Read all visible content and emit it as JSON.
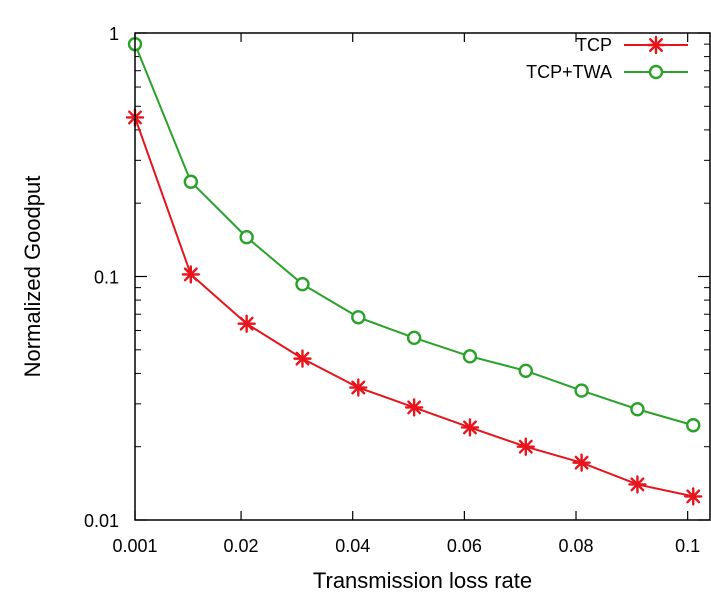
{
  "chart_data": {
    "type": "line",
    "title": "",
    "xlabel": "Transmission loss rate",
    "ylabel": "Normalized Goodput",
    "yscale": "log",
    "ylim": [
      0.01,
      1
    ],
    "xlim": [
      0.001,
      0.104
    ],
    "x": [
      0.001,
      0.011,
      0.021,
      0.031,
      0.041,
      0.051,
      0.061,
      0.071,
      0.081,
      0.091,
      0.101
    ],
    "x_ticks": [
      0.001,
      0.02,
      0.04,
      0.06,
      0.08,
      0.1
    ],
    "x_tick_labels": [
      "0.001",
      "0.02",
      "0.04",
      "0.06",
      "0.08",
      "0.1"
    ],
    "y_ticks": [
      1,
      0.1,
      0.01
    ],
    "y_tick_labels": [
      "1",
      "0.1",
      "0.01"
    ],
    "grid": false,
    "legend_position": "top-right",
    "series": [
      {
        "name": "TCP",
        "color": "#e8141c",
        "marker": "asterisk",
        "values": [
          0.45,
          0.102,
          0.064,
          0.046,
          0.035,
          0.029,
          0.024,
          0.02,
          0.0172,
          0.014,
          0.0125
        ]
      },
      {
        "name": "TCP+TWA",
        "color": "#2aa22a",
        "marker": "circle",
        "values": [
          0.9,
          0.245,
          0.145,
          0.093,
          0.068,
          0.056,
          0.047,
          0.041,
          0.034,
          0.0285,
          0.0245
        ]
      }
    ]
  }
}
